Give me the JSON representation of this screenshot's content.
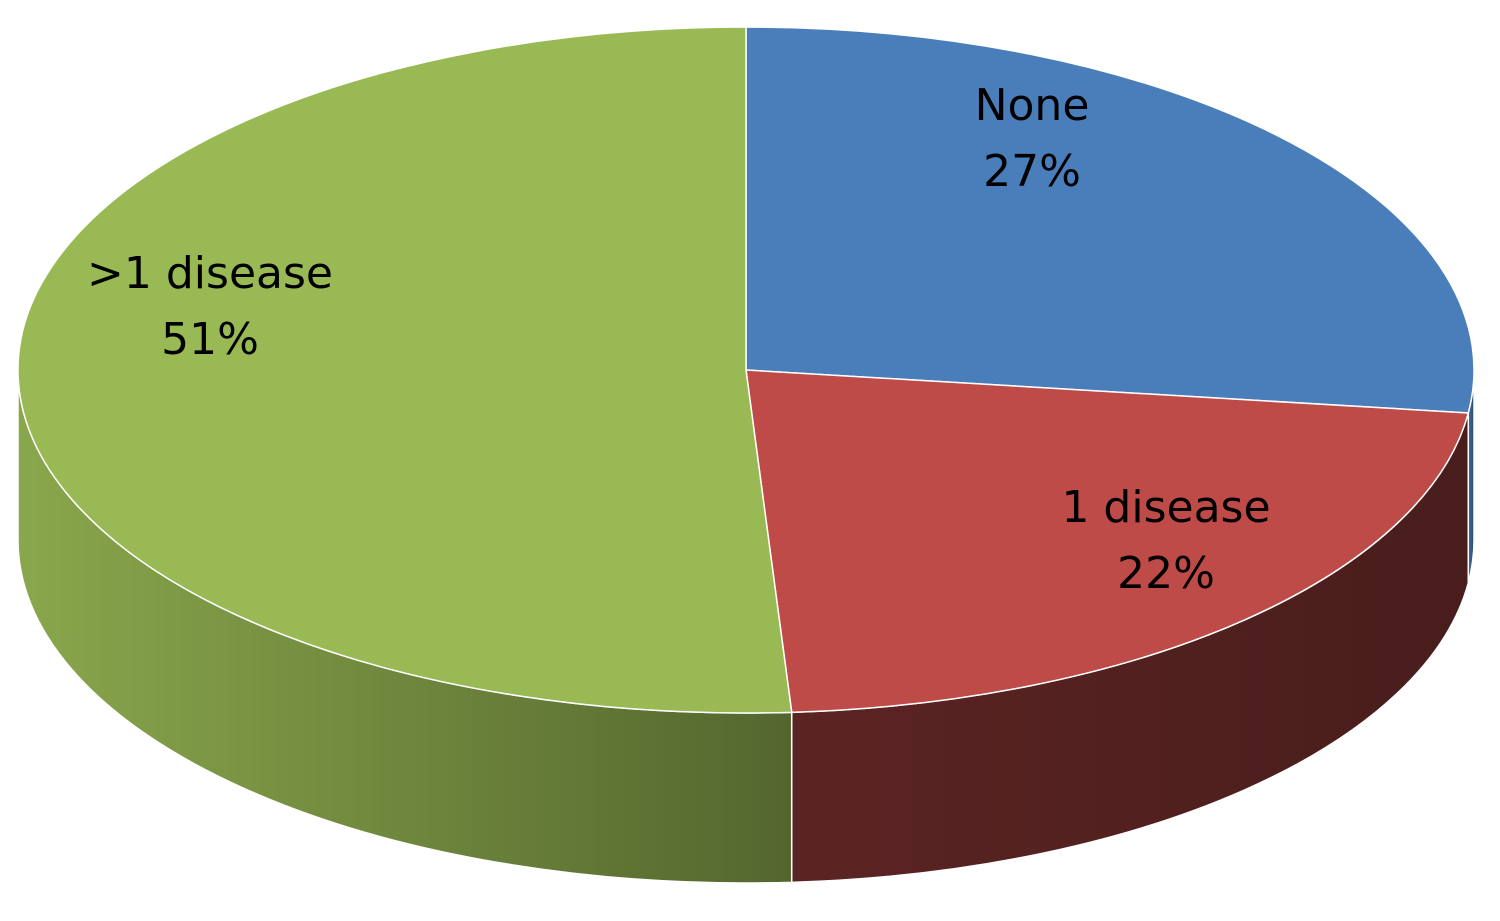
{
  "chart_data": {
    "type": "pie",
    "style": "3d",
    "title": "",
    "slices": [
      {
        "label": "None",
        "value": 27,
        "display": "27%",
        "color": "#4a7ebb"
      },
      {
        "label": "1 disease",
        "value": 22,
        "display": "22%",
        "color": "#be4b48"
      },
      {
        "label": ">1 disease",
        "value": 51,
        "display": "51%",
        "color": "#98b954"
      }
    ],
    "legend": "none",
    "data_labels": "inside"
  }
}
